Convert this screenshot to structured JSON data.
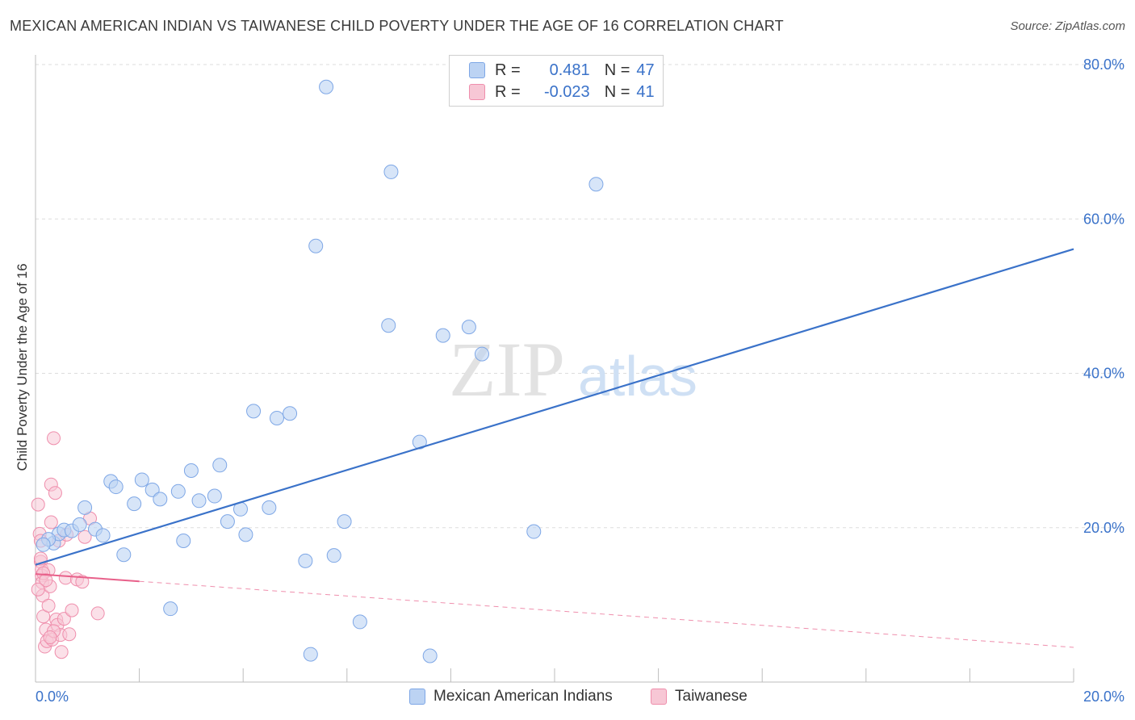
{
  "title": "MEXICAN AMERICAN INDIAN VS TAIWANESE CHILD POVERTY UNDER THE AGE OF 16 CORRELATION CHART",
  "source": "Source: ZipAtlas.com",
  "watermark": {
    "zip": "ZIP",
    "atlas": "atlas"
  },
  "legend": {
    "r_label": "R =",
    "n_label": "N =",
    "rows": [
      {
        "r": "0.481",
        "n": "47",
        "color": "#7ea7e6"
      },
      {
        "r": "-0.023",
        "n": "41",
        "color": "#ef8eac"
      }
    ]
  },
  "bottom_legend": [
    {
      "label": "Mexican American Indians",
      "color": "#7ea7e6"
    },
    {
      "label": "Taiwanese",
      "color": "#ef8eac"
    }
  ],
  "colors": {
    "blue": "#3a72c9",
    "blue_fill": "#bcd3f3",
    "pink": "#e8608a",
    "pink_fill": "#f7c7d5",
    "grid": "#dddddd"
  },
  "chart_data": {
    "type": "scatter",
    "title": "MEXICAN AMERICAN INDIAN VS TAIWANESE CHILD POVERTY UNDER THE AGE OF 16 CORRELATION CHART",
    "xlabel": "",
    "ylabel": "Child Poverty Under the Age of 16",
    "xlim": [
      0,
      20
    ],
    "ylim": [
      0,
      80
    ],
    "x_tick_labels": [
      "0.0%",
      "20.0%"
    ],
    "y_ticks": [
      20,
      40,
      60,
      80
    ],
    "y_tick_labels": [
      "20.0%",
      "40.0%",
      "60.0%",
      "80.0%"
    ],
    "series": [
      {
        "name": "Mexican American Indians",
        "R": 0.481,
        "N": 47,
        "trend": {
          "x0": 0,
          "y0": 15.2,
          "x1": 20,
          "y1": 56.1
        },
        "points": [
          [
            0.35,
            18.0
          ],
          [
            0.45,
            19.2
          ],
          [
            0.55,
            19.7
          ],
          [
            0.7,
            19.6
          ],
          [
            0.85,
            20.4
          ],
          [
            0.95,
            22.6
          ],
          [
            1.15,
            19.8
          ],
          [
            1.3,
            19.0
          ],
          [
            1.45,
            26.0
          ],
          [
            1.55,
            25.3
          ],
          [
            1.7,
            16.5
          ],
          [
            1.9,
            23.1
          ],
          [
            2.05,
            26.2
          ],
          [
            2.25,
            24.9
          ],
          [
            2.4,
            23.7
          ],
          [
            2.6,
            9.5
          ],
          [
            2.75,
            24.7
          ],
          [
            2.85,
            18.3
          ],
          [
            3.0,
            27.4
          ],
          [
            3.15,
            23.5
          ],
          [
            3.45,
            24.1
          ],
          [
            3.55,
            28.1
          ],
          [
            3.7,
            20.8
          ],
          [
            3.95,
            22.4
          ],
          [
            4.05,
            19.1
          ],
          [
            4.2,
            35.1
          ],
          [
            4.5,
            22.6
          ],
          [
            4.65,
            34.2
          ],
          [
            4.9,
            34.8
          ],
          [
            5.2,
            15.7
          ],
          [
            5.3,
            3.6
          ],
          [
            5.4,
            56.5
          ],
          [
            5.6,
            77.1
          ],
          [
            5.75,
            16.4
          ],
          [
            5.95,
            20.8
          ],
          [
            6.25,
            7.8
          ],
          [
            6.8,
            46.2
          ],
          [
            6.85,
            66.1
          ],
          [
            7.4,
            31.1
          ],
          [
            7.6,
            3.4
          ],
          [
            7.85,
            44.9
          ],
          [
            8.35,
            46.0
          ],
          [
            8.6,
            42.5
          ],
          [
            9.6,
            19.5
          ],
          [
            10.8,
            64.5
          ],
          [
            0.25,
            18.5
          ],
          [
            0.15,
            17.8
          ]
        ]
      },
      {
        "name": "Taiwanese",
        "R": -0.023,
        "N": 41,
        "trend": {
          "x0": 0,
          "y0": 14.0,
          "x1": 20,
          "y1": 4.5,
          "solid_until": 2.0
        },
        "points": [
          [
            0.05,
            23.0
          ],
          [
            0.08,
            19.2
          ],
          [
            0.1,
            18.3
          ],
          [
            0.1,
            15.6
          ],
          [
            0.12,
            14.6
          ],
          [
            0.12,
            13.8
          ],
          [
            0.13,
            12.9
          ],
          [
            0.14,
            11.2
          ],
          [
            0.15,
            8.5
          ],
          [
            0.18,
            4.6
          ],
          [
            0.2,
            6.8
          ],
          [
            0.22,
            5.3
          ],
          [
            0.25,
            14.5
          ],
          [
            0.28,
            12.4
          ],
          [
            0.3,
            20.7
          ],
          [
            0.3,
            25.6
          ],
          [
            0.32,
            5.5
          ],
          [
            0.35,
            31.6
          ],
          [
            0.38,
            24.5
          ],
          [
            0.4,
            8.1
          ],
          [
            0.42,
            7.4
          ],
          [
            0.45,
            18.3
          ],
          [
            0.48,
            6.1
          ],
          [
            0.5,
            3.9
          ],
          [
            0.55,
            8.2
          ],
          [
            0.58,
            13.5
          ],
          [
            0.6,
            19.1
          ],
          [
            0.65,
            6.2
          ],
          [
            0.7,
            9.3
          ],
          [
            0.8,
            13.3
          ],
          [
            0.9,
            13.0
          ],
          [
            0.95,
            18.8
          ],
          [
            1.05,
            21.2
          ],
          [
            1.2,
            8.9
          ],
          [
            0.15,
            14.1
          ],
          [
            0.2,
            13.2
          ],
          [
            0.25,
            9.9
          ],
          [
            0.35,
            6.6
          ],
          [
            0.05,
            12.0
          ],
          [
            0.1,
            16.0
          ],
          [
            0.28,
            5.8
          ]
        ]
      }
    ]
  }
}
